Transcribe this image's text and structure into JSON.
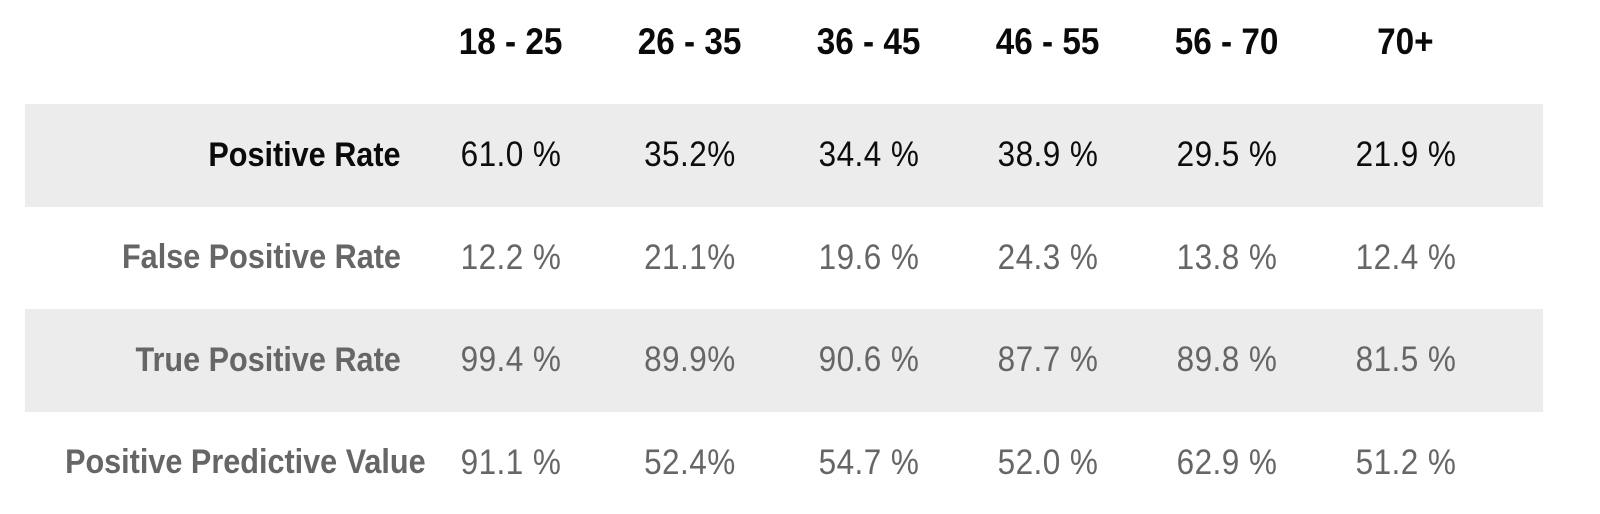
{
  "table": {
    "columns": [
      "18 - 25",
      "26 - 35",
      "36 - 45",
      "46 - 55",
      "56 - 70",
      "70+"
    ],
    "rows": [
      {
        "label": "Positive Rate",
        "emphasis": true,
        "values": [
          "61.0 %",
          "35.2%",
          "34.4 %",
          "38.9 %",
          "29.5 %",
          "21.9 %"
        ]
      },
      {
        "label": "False Positive Rate",
        "emphasis": false,
        "values": [
          "12.2 %",
          "21.1%",
          "19.6 %",
          "24.3 %",
          "13.8 %",
          "12.4 %"
        ]
      },
      {
        "label": "True Positive Rate",
        "emphasis": false,
        "values": [
          "99.4 %",
          "89.9%",
          "90.6 %",
          "87.7 %",
          "89.8 %",
          "81.5 %"
        ]
      },
      {
        "label": "Positive Predictive Value",
        "emphasis": false,
        "values": [
          "91.1 %",
          "52.4%",
          "54.7 %",
          "52.0 %",
          "62.9 %",
          "51.2 %"
        ]
      }
    ],
    "colors": {
      "band_background": "#ececec",
      "emphasis_text": "#0d0d0d",
      "muted_text": "#666666",
      "page_background": "#ffffff"
    }
  },
  "chart_data": {
    "type": "table",
    "title": "",
    "categories": [
      "18 - 25",
      "26 - 35",
      "36 - 45",
      "46 - 55",
      "56 - 70",
      "70+"
    ],
    "series": [
      {
        "name": "Positive Rate",
        "values": [
          61.0,
          35.2,
          34.4,
          38.9,
          29.5,
          21.9
        ]
      },
      {
        "name": "False Positive Rate",
        "values": [
          12.2,
          21.1,
          19.6,
          24.3,
          13.8,
          12.4
        ]
      },
      {
        "name": "True Positive Rate",
        "values": [
          99.4,
          89.9,
          90.6,
          87.7,
          89.8,
          81.5
        ]
      },
      {
        "name": "Positive Predictive Value",
        "values": [
          91.1,
          52.4,
          54.7,
          52.0,
          62.9,
          51.2
        ]
      }
    ],
    "unit": "%",
    "layout": {
      "row_striping": true,
      "first_row_emphasized": true,
      "grid": false,
      "legend": "none"
    }
  }
}
